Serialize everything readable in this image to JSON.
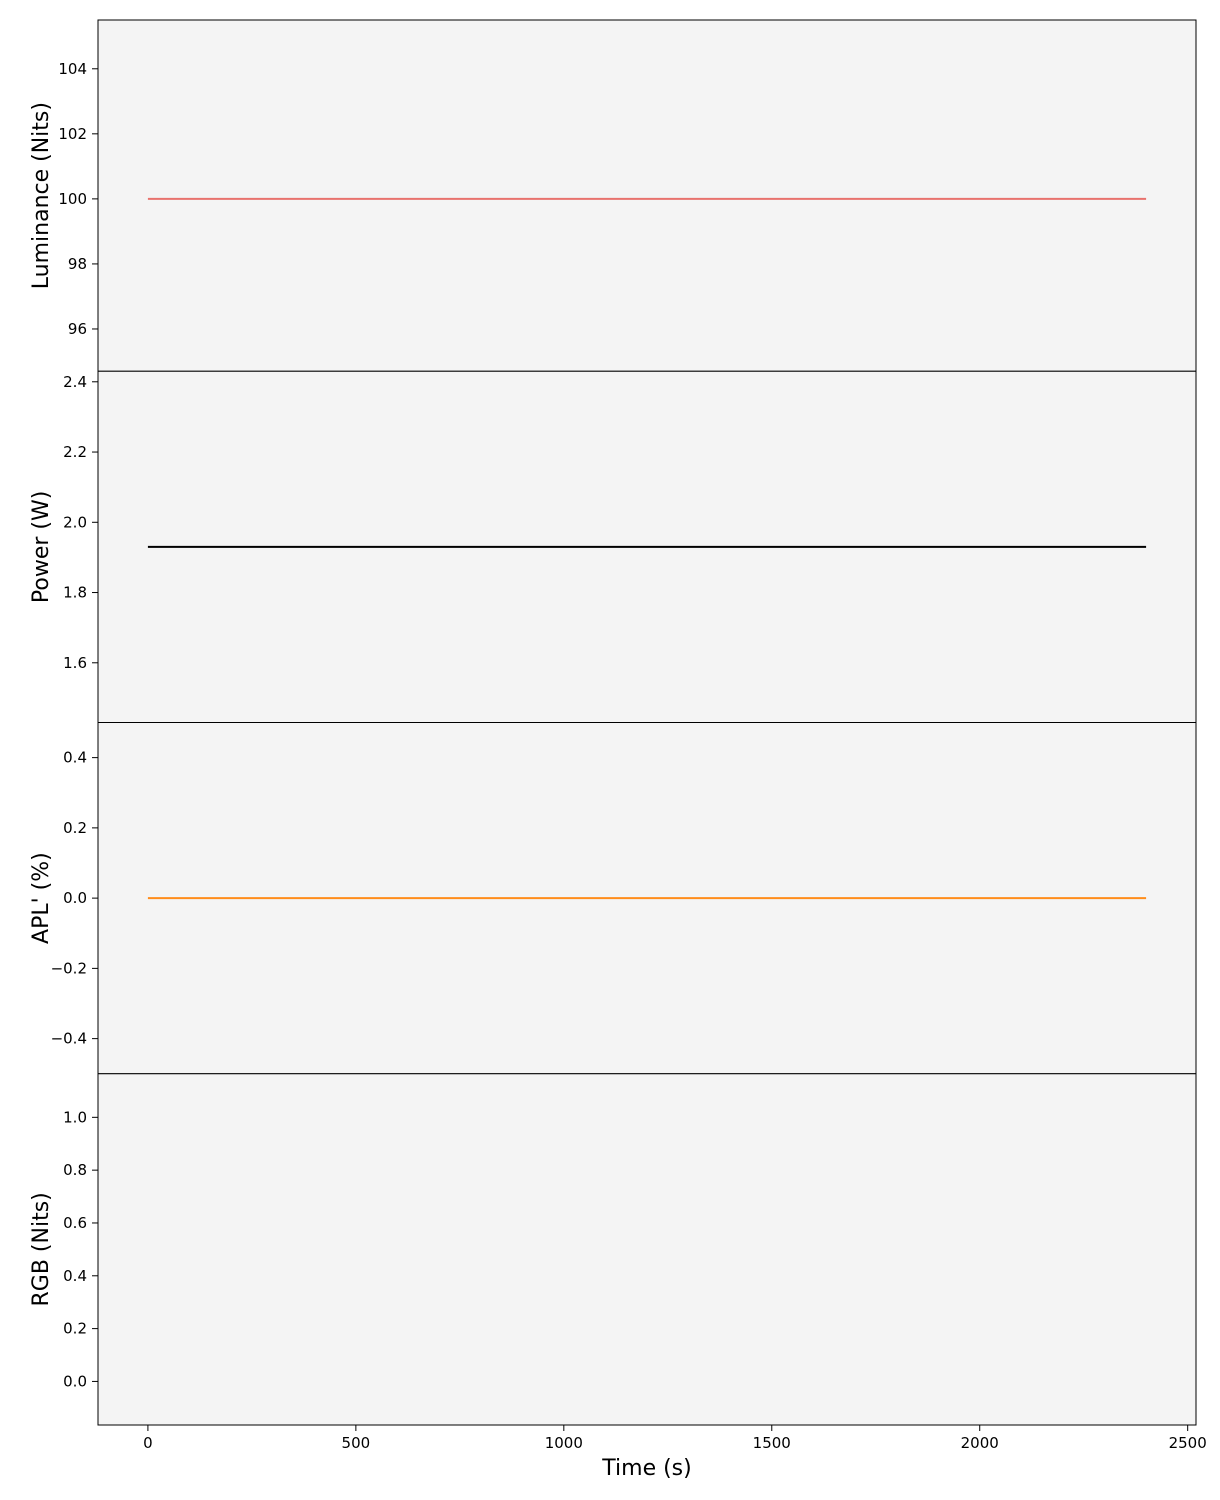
{
  "chart_data": [
    {
      "type": "line",
      "ylabel": "Luminance (Nits)",
      "ylim": [
        94.7,
        105.5
      ],
      "yticks": [
        96,
        98,
        100,
        102,
        104
      ],
      "ytick_labels": [
        "96",
        "98",
        "100",
        "102",
        "104"
      ],
      "series": [
        {
          "color": "#e8726d",
          "x": [
            0,
            2400
          ],
          "y": [
            100,
            100
          ]
        }
      ]
    },
    {
      "type": "line",
      "ylabel": "Power (W)",
      "ylim": [
        1.43,
        2.43
      ],
      "yticks": [
        1.6,
        1.8,
        2.0,
        2.2,
        2.4
      ],
      "ytick_labels": [
        "1.6",
        "1.8",
        "2.0",
        "2.2",
        "2.4"
      ],
      "series": [
        {
          "color": "#000000",
          "x": [
            0,
            2400
          ],
          "y": [
            1.93,
            1.93
          ]
        }
      ]
    },
    {
      "type": "line",
      "ylabel": "APL' (%)",
      "ylim": [
        -0.5,
        0.5
      ],
      "yticks": [
        -0.4,
        -0.2,
        0.0,
        0.2,
        0.4
      ],
      "ytick_labels": [
        "−0.4",
        "−0.2",
        "0.0",
        "0.2",
        "0.4"
      ],
      "series": [
        {
          "color": "#ff8c1a",
          "x": [
            0,
            2400
          ],
          "y": [
            0,
            0
          ]
        }
      ]
    },
    {
      "type": "line",
      "ylabel": "RGB (Nits)",
      "ylim": [
        -0.165,
        1.165
      ],
      "yticks": [
        0.0,
        0.2,
        0.4,
        0.6,
        0.8,
        1.0
      ],
      "ytick_labels": [
        "0.0",
        "0.2",
        "0.4",
        "0.6",
        "0.8",
        "1.0"
      ],
      "series": []
    }
  ],
  "shared_x": {
    "xlabel": "Time (s)",
    "xlim": [
      -120,
      2520
    ],
    "xticks": [
      0,
      500,
      1000,
      1500,
      2000,
      2500
    ],
    "xtick_labels": [
      "0",
      "500",
      "1000",
      "1500",
      "2000",
      "2500"
    ]
  },
  "colors": {
    "panel_background": "#f4f4f4",
    "frame": "#000000"
  }
}
